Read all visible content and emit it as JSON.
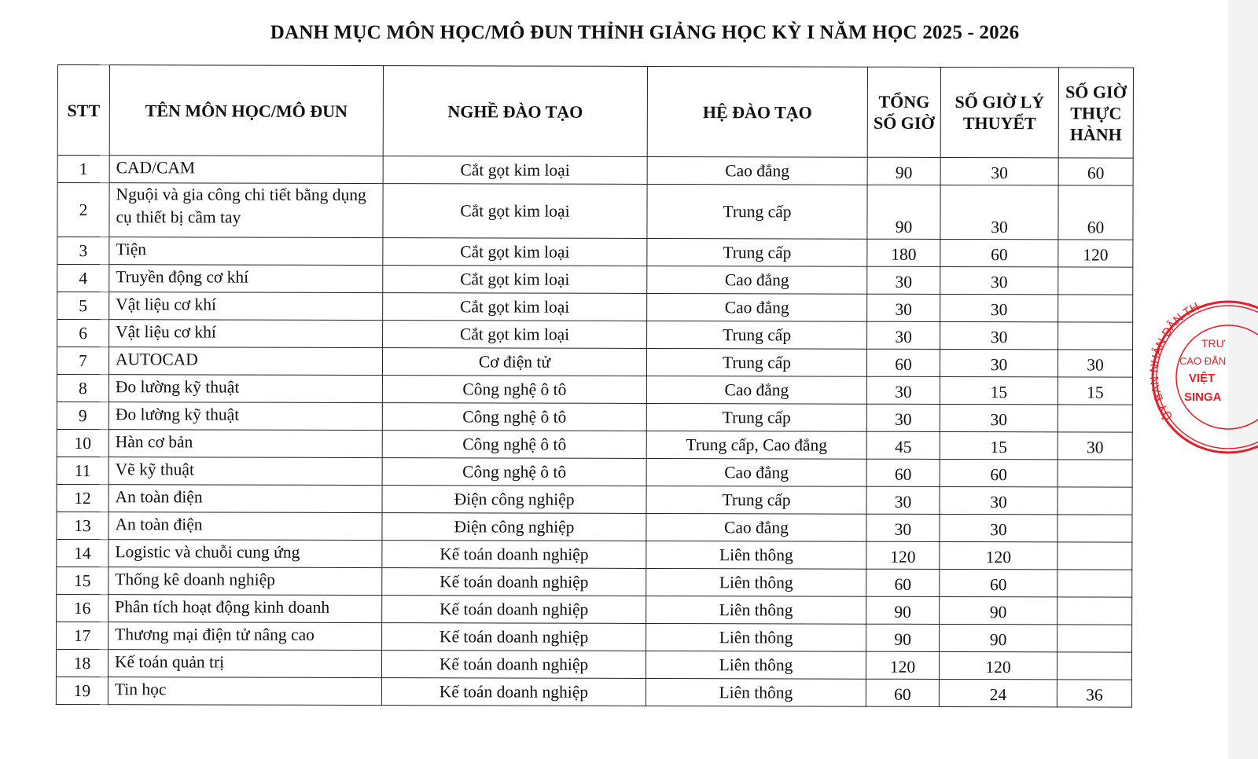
{
  "title": "DANH MỤC MÔN HỌC/MÔ ĐUN THỈNH GIẢNG HỌC KỲ I NĂM HỌC 2025 - 2026",
  "headers": {
    "stt": "STT",
    "ten": "TÊN MÔN HỌC/MÔ ĐUN",
    "nghe": "NGHỀ ĐÀO TẠO",
    "he": "HỆ ĐÀO TẠO",
    "tong": "TỔNG SỐ GIỜ",
    "lt": "SỐ GIỜ LÝ THUYẾT",
    "th": "SỐ GIỜ THỰC HÀNH"
  },
  "rows": [
    {
      "stt": "1",
      "ten": "CAD/CAM",
      "nghe": "Cắt gọt kim loại",
      "he": "Cao đẳng",
      "tong": "90",
      "lt": "30",
      "th": "60"
    },
    {
      "stt": "2",
      "ten": "Nguội và gia công chi tiết bằng dụng cụ thiết bị cầm tay",
      "nghe": "Cắt gọt kim loại",
      "he": "Trung cấp",
      "tong": "90",
      "lt": "30",
      "th": "60"
    },
    {
      "stt": "3",
      "ten": "Tiện",
      "nghe": "Cắt gọt kim loại",
      "he": "Trung cấp",
      "tong": "180",
      "lt": "60",
      "th": "120"
    },
    {
      "stt": "4",
      "ten": "Truyền động cơ khí",
      "nghe": "Cắt gọt kim loại",
      "he": "Cao đẳng",
      "tong": "30",
      "lt": "30",
      "th": ""
    },
    {
      "stt": "5",
      "ten": "Vật liệu cơ khí",
      "nghe": "Cắt gọt kim loại",
      "he": "Cao đẳng",
      "tong": "30",
      "lt": "30",
      "th": ""
    },
    {
      "stt": "6",
      "ten": "Vật liệu cơ khí",
      "nghe": "Cắt gọt kim loại",
      "he": "Trung cấp",
      "tong": "30",
      "lt": "30",
      "th": ""
    },
    {
      "stt": "7",
      "ten": "AUTOCAD",
      "nghe": "Cơ điện tử",
      "he": "Trung cấp",
      "tong": "60",
      "lt": "30",
      "th": "30"
    },
    {
      "stt": "8",
      "ten": "Đo lường kỹ thuật",
      "nghe": "Công nghệ ô tô",
      "he": "Cao đẳng",
      "tong": "30",
      "lt": "15",
      "th": "15"
    },
    {
      "stt": "9",
      "ten": "Đo lường kỹ thuật",
      "nghe": "Công nghệ ô tô",
      "he": "Trung cấp",
      "tong": "30",
      "lt": "30",
      "th": ""
    },
    {
      "stt": "10",
      "ten": "Hàn cơ bản",
      "nghe": "Công nghệ ô tô",
      "he": "Trung cấp, Cao đẳng",
      "tong": "45",
      "lt": "15",
      "th": "30"
    },
    {
      "stt": "11",
      "ten": "Vẽ kỹ thuật",
      "nghe": "Công nghệ ô tô",
      "he": "Cao đẳng",
      "tong": "60",
      "lt": "60",
      "th": ""
    },
    {
      "stt": "12",
      "ten": "An toàn điện",
      "nghe": "Điện công nghiệp",
      "he": "Trung cấp",
      "tong": "30",
      "lt": "30",
      "th": ""
    },
    {
      "stt": "13",
      "ten": "An toàn điện",
      "nghe": "Điện công nghiệp",
      "he": "Cao đẳng",
      "tong": "30",
      "lt": "30",
      "th": ""
    },
    {
      "stt": "14",
      "ten": "Logistic và chuỗi cung ứng",
      "nghe": "Kế toán doanh nghiệp",
      "he": "Liên thông",
      "tong": "120",
      "lt": "120",
      "th": ""
    },
    {
      "stt": "15",
      "ten": "Thống kê doanh nghiệp",
      "nghe": "Kế toán doanh nghiệp",
      "he": "Liên thông",
      "tong": "60",
      "lt": "60",
      "th": ""
    },
    {
      "stt": "16",
      "ten": "Phân tích hoạt động kinh doanh",
      "nghe": "Kế toán doanh nghiệp",
      "he": "Liên thông",
      "tong": "90",
      "lt": "90",
      "th": ""
    },
    {
      "stt": "17",
      "ten": "Thương mại điện tử nâng cao",
      "nghe": "Kế toán doanh nghiệp",
      "he": "Liên thông",
      "tong": "90",
      "lt": "90",
      "th": ""
    },
    {
      "stt": "18",
      "ten": "Kế toán quản trị",
      "nghe": "Kế toán doanh nghiệp",
      "he": "Liên thông",
      "tong": "120",
      "lt": "120",
      "th": ""
    },
    {
      "stt": "19",
      "ten": "Tin học",
      "nghe": "Kế toán doanh nghiệp",
      "he": "Liên thông",
      "tong": "60",
      "lt": "24",
      "th": "36"
    }
  ],
  "stamp": {
    "ring_text": "ỦY BAN NHÂN DÂN TH",
    "line1": "TRƯ",
    "line2": "CAO ĐẲN",
    "line3": "VIỆT",
    "line4": "SINGA",
    "color": "#e0202a"
  }
}
